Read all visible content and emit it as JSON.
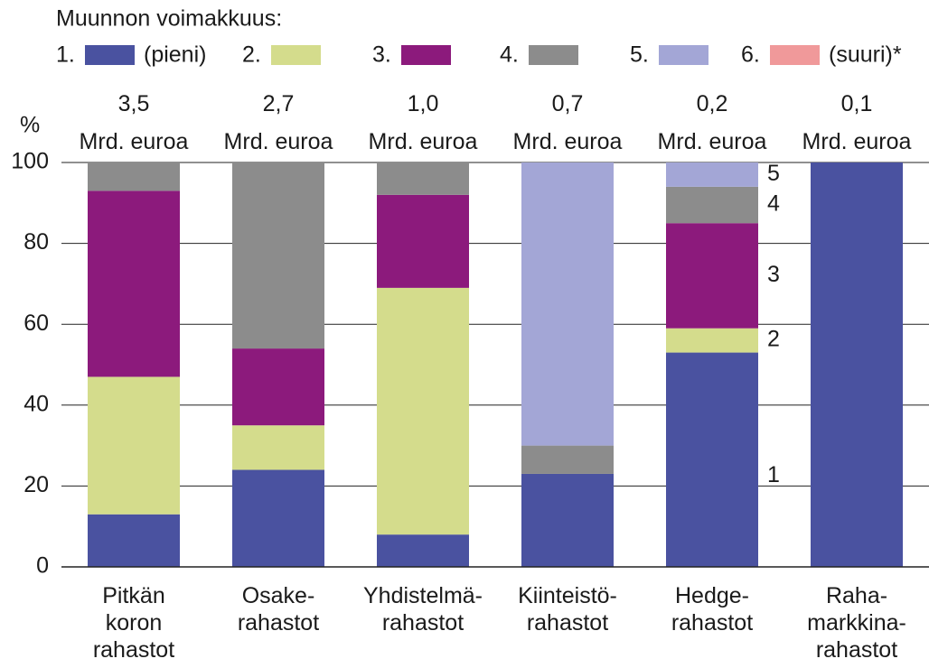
{
  "chart_data": {
    "type": "stacked_bar",
    "legend_title": "Muunnon voimakkuus:",
    "legend_low": "(pieni)",
    "legend_high": "(suuri)*",
    "ylabel": "%",
    "categories": [
      "Pitkän\nkoron\nrahastot",
      "Osake-\nrahastot",
      "Yhdistelmä-\nrahastot",
      "Kiinteistö-\nrahastot",
      "Hedge-\nrahastot",
      "Raha-\nmarkkina-\nrahastot"
    ],
    "amounts": [
      "3,5",
      "2,7",
      "1,0",
      "0,7",
      "0,2",
      "0,1"
    ],
    "amount_unit": "Mrd. euroa",
    "series": [
      {
        "name": "1.",
        "color": "#4a52a0",
        "values": [
          13,
          24,
          8,
          23,
          53,
          100
        ]
      },
      {
        "name": "2.",
        "color": "#d4dc8c",
        "values": [
          34,
          11,
          61,
          0,
          6,
          0
        ]
      },
      {
        "name": "3.",
        "color": "#8c1a7c",
        "values": [
          46,
          19,
          23,
          0,
          26,
          0
        ]
      },
      {
        "name": "4.",
        "color": "#8c8c8c",
        "values": [
          7,
          46,
          8,
          7,
          9,
          0
        ]
      },
      {
        "name": "5.",
        "color": "#a3a6d6",
        "values": [
          0,
          0,
          0,
          70,
          6,
          0
        ]
      },
      {
        "name": "6.",
        "color": "#f0999a",
        "values": [
          0,
          0,
          0,
          0,
          0,
          0
        ]
      }
    ],
    "segment_labels": [
      "1",
      "2",
      "3",
      "4",
      "5"
    ],
    "ylim": [
      0,
      100
    ],
    "yticks": [
      0,
      20,
      40,
      60,
      80,
      100
    ],
    "grid": true
  }
}
